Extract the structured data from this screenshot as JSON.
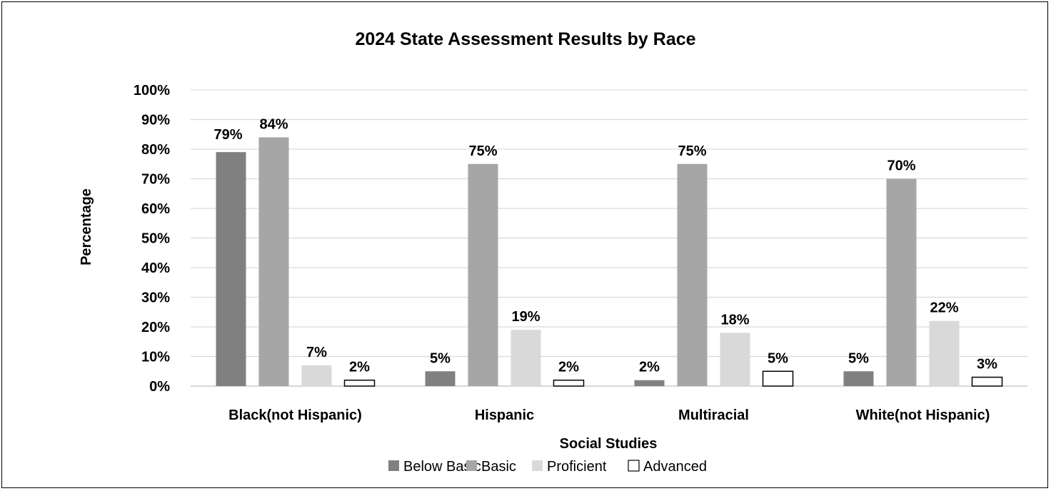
{
  "chart_data": {
    "type": "bar",
    "title": "2024 State Assessment Results by Race",
    "xlabel": "Social Studies",
    "ylabel": "Percentage",
    "ylim": [
      0,
      100
    ],
    "y_ticks": [
      "0%",
      "10%",
      "20%",
      "30%",
      "40%",
      "50%",
      "60%",
      "70%",
      "80%",
      "90%",
      "100%"
    ],
    "categories": [
      "Black(not Hispanic)",
      "Hispanic",
      "Multiracial",
      "White(not Hispanic)"
    ],
    "series": [
      {
        "name": "Below Basic",
        "color": "#808080",
        "values": [
          79,
          5,
          2,
          5
        ],
        "labels": [
          "79%",
          "5%",
          "2%",
          "5%"
        ]
      },
      {
        "name": "Basic",
        "color": "#a6a6a6",
        "values": [
          84,
          75,
          75,
          70
        ],
        "labels": [
          "84%",
          "75%",
          "75%",
          "70%"
        ]
      },
      {
        "name": "Proficient",
        "color": "#d9d9d9",
        "values": [
          7,
          19,
          18,
          22
        ],
        "labels": [
          "7%",
          "19%",
          "18%",
          "22%"
        ]
      },
      {
        "name": "Advanced",
        "color": "#ffffff",
        "values": [
          2,
          2,
          5,
          3
        ],
        "labels": [
          "2%",
          "2%",
          "5%",
          "3%"
        ]
      }
    ],
    "grid": true,
    "legend_position": "bottom"
  }
}
